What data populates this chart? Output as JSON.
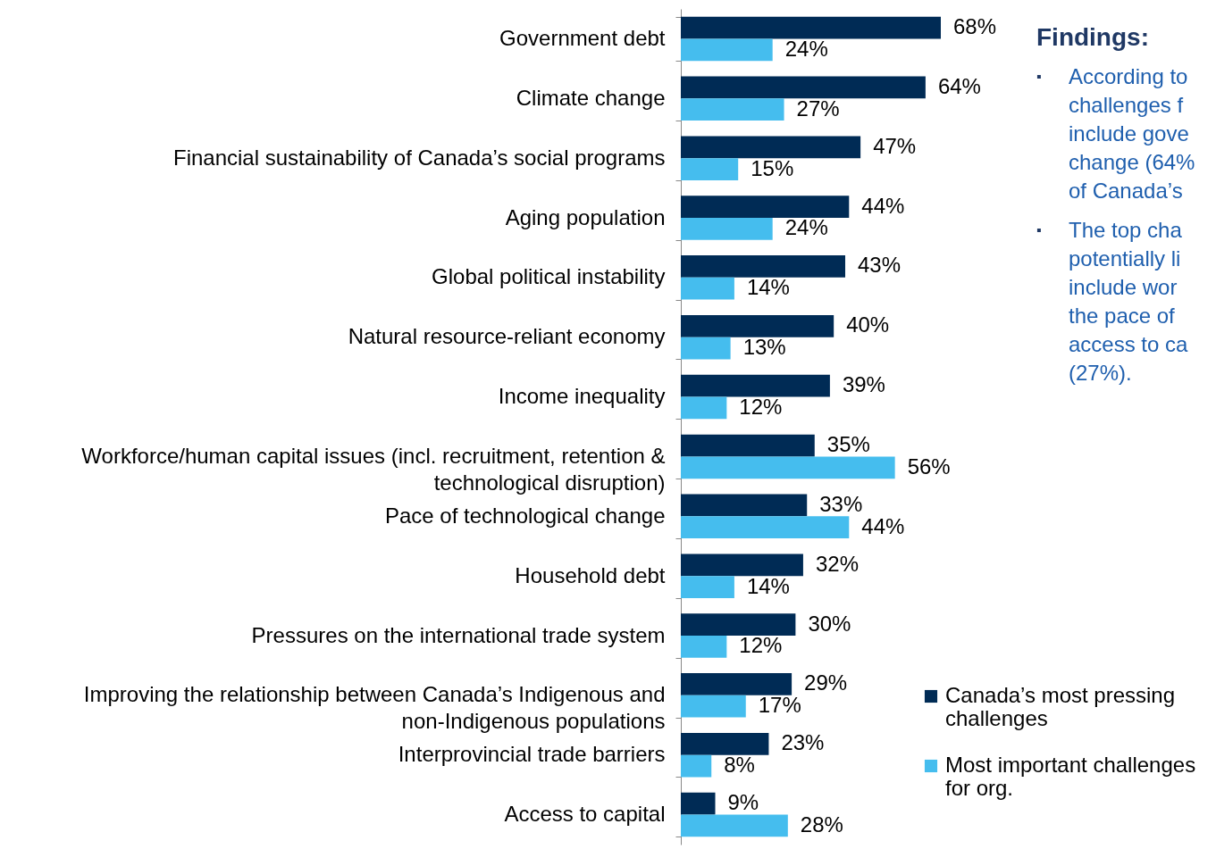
{
  "chart_data": {
    "type": "bar",
    "orientation": "horizontal",
    "categories": [
      "Government debt",
      "Climate change",
      "Financial sustainability of Canada’s social programs",
      "Aging population",
      "Global political instability",
      "Natural resource-reliant economy",
      "Income inequality",
      "Workforce/human capital issues (incl. recruitment, retention & technological disruption)",
      "Pace of technological change",
      "Household debt",
      "Pressures on the international trade system",
      "Improving the relationship between Canada’s Indigenous and non-Indigenous populations",
      "Interprovincial trade barriers",
      "Access to capital"
    ],
    "series": [
      {
        "name": "Canada’s most pressing challenges",
        "color": "#002b55",
        "values": [
          68,
          64,
          47,
          44,
          43,
          40,
          39,
          35,
          33,
          32,
          30,
          29,
          23,
          9
        ],
        "value_labels": [
          "68%",
          "64%",
          "47%",
          "44%",
          "43%",
          "40%",
          "39%",
          "35%",
          "33%",
          "32%",
          "30%",
          "29%",
          "23%",
          "9%"
        ]
      },
      {
        "name": "Most important challenges for org.",
        "color": "#45bdee",
        "values": [
          24,
          27,
          15,
          24,
          14,
          13,
          12,
          56,
          44,
          14,
          12,
          17,
          8,
          28
        ],
        "value_labels": [
          "24%",
          "27%",
          "15%",
          "24%",
          "14%",
          "13%",
          "12%",
          "56%",
          "44%",
          "14%",
          "12%",
          "17%",
          "8%",
          "28%"
        ]
      }
    ],
    "tick_labels": "y",
    "grid": false,
    "legend": "bottom right",
    "annotations": [
      "Findings:",
      "▪ According to\nchallenges f\ninclude gove\nchange (64%\nof Canada’s",
      "▪ The top cha\npotentially li\ninclude wor\nthe pace of\naccess to ca\n(27%)."
    ]
  }
}
